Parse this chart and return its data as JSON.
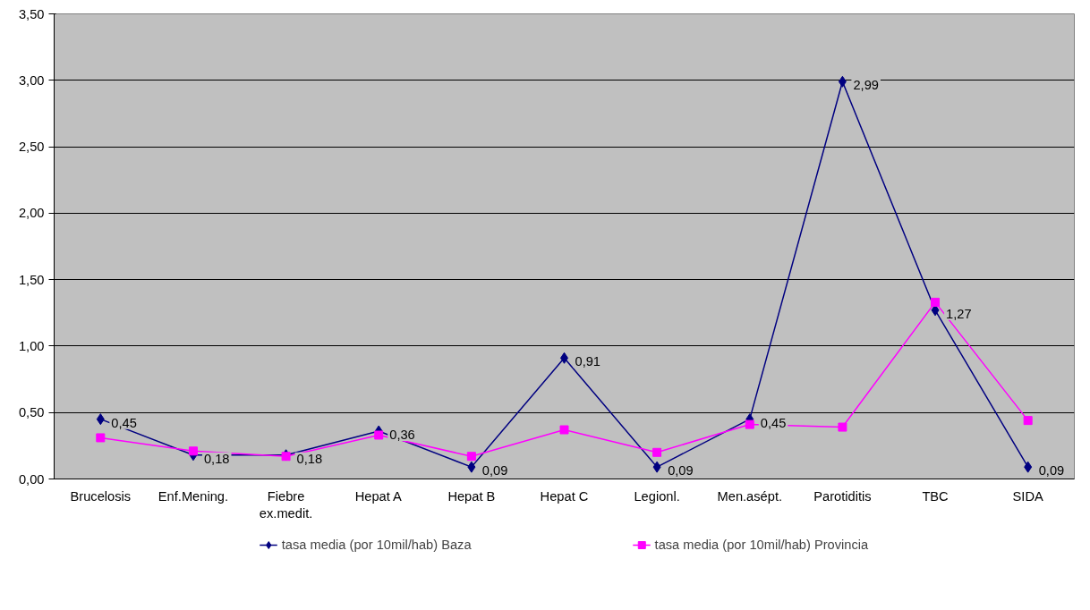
{
  "chart_data": {
    "type": "line",
    "categories": [
      "Brucelosis",
      "Enf.Mening.",
      "Fiebre\nex.medit.",
      "Hepat A",
      "Hepat B",
      "Hepat C",
      "Legionl.",
      "Men.asépt.",
      "Parotiditis",
      "TBC",
      "SIDA"
    ],
    "series": [
      {
        "name": "tasa media (por 10mil/hab) Baza",
        "color": "#000080",
        "marker": "diamond",
        "values": [
          0.45,
          0.18,
          0.18,
          0.36,
          0.09,
          0.91,
          0.09,
          0.45,
          2.99,
          1.27,
          0.09
        ],
        "value_labels": [
          "0,45",
          "0,18",
          "0,18",
          "0,36",
          "0,09",
          "0,91",
          "0,09",
          "0,45",
          "2,99",
          "1,27",
          "0,09"
        ]
      },
      {
        "name": "tasa media (por 10mil/hab) Provincia",
        "color": "#ff00ff",
        "marker": "square",
        "values": [
          0.31,
          0.21,
          0.17,
          0.33,
          0.17,
          0.37,
          0.2,
          0.41,
          0.39,
          1.33,
          0.44
        ]
      }
    ],
    "ylim": [
      0,
      3.5
    ],
    "yticks": [
      {
        "value": 0,
        "label": "0,00"
      },
      {
        "value": 0.5,
        "label": "0,50"
      },
      {
        "value": 1,
        "label": "1,00"
      },
      {
        "value": 1.5,
        "label": "1,50"
      },
      {
        "value": 2,
        "label": "2,00"
      },
      {
        "value": 2.5,
        "label": "2,50"
      },
      {
        "value": 3,
        "label": "3,00"
      },
      {
        "value": 3.5,
        "label": "3,50"
      }
    ],
    "grid": "y",
    "legend": "bottom"
  }
}
